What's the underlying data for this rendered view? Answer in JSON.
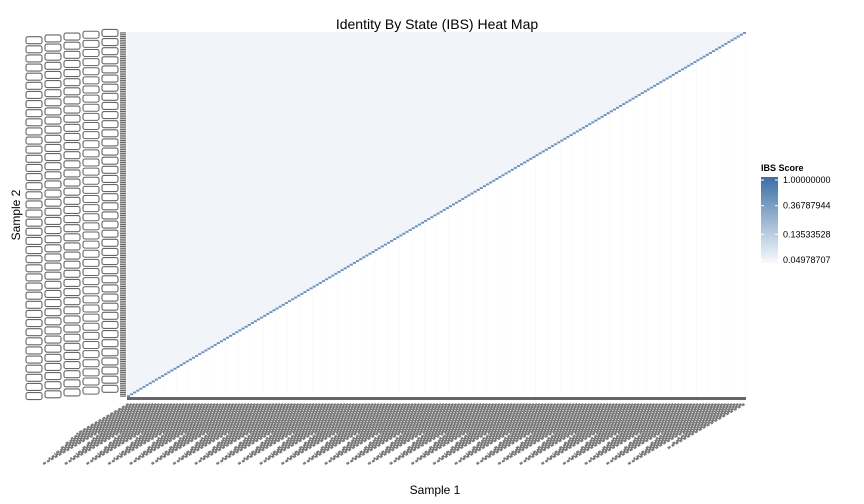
{
  "chart_data": {
    "type": "heatmap",
    "title": "Identity By State (IBS) Heat Map",
    "xlabel": "Sample 1",
    "ylabel": "Sample 2",
    "n_samples": 200,
    "matrix": "upper-triangular",
    "diagonal_value": 1.0,
    "upper_triangle_typical_value": 0.055,
    "lower_triangle": "blank",
    "tick_labels_legible": false,
    "legend": {
      "title": "IBS Score",
      "placement": "right",
      "scale": "log",
      "breaks": [
        1.0,
        0.36787944,
        0.13533528,
        0.04978707
      ],
      "break_labels": [
        "1.00000000",
        "0.36787944",
        "0.13533528",
        "0.04978707"
      ],
      "limits": [
        0.04978707,
        1.0
      ]
    },
    "colors": {
      "high": "#3a6ea5",
      "low": "#f7f9fc",
      "tick_label": "#666666",
      "grid": "#f0f2f6"
    }
  }
}
